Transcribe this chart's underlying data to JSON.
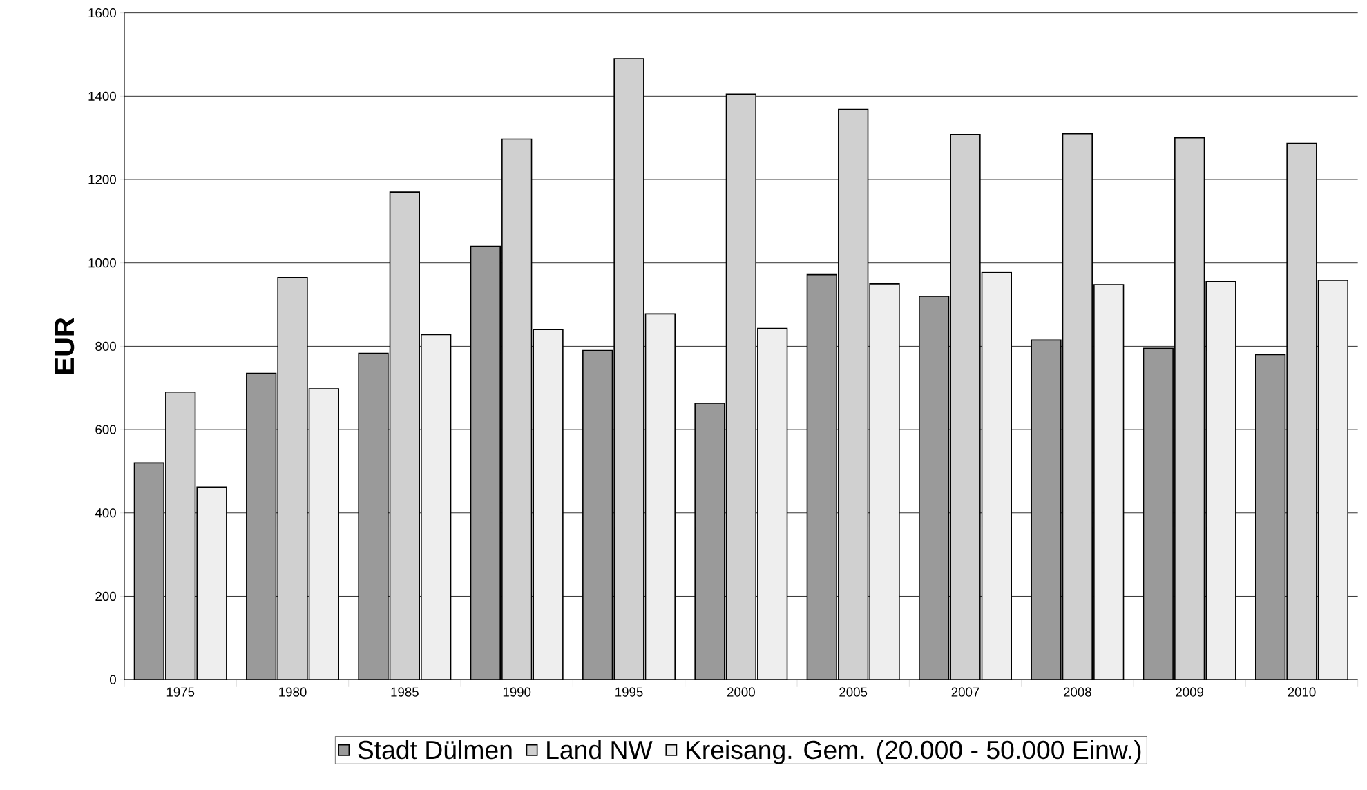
{
  "chart_data": {
    "type": "bar",
    "ylabel": "EUR",
    "categories": [
      "1975",
      "1980",
      "1985",
      "1990",
      "1995",
      "2000",
      "2005",
      "2007",
      "2008",
      "2009",
      "2010"
    ],
    "series": [
      {
        "name": "Stadt Dülmen",
        "color": "#9a9a9a",
        "values": [
          520,
          735,
          783,
          1040,
          790,
          663,
          972,
          920,
          815,
          795,
          780
        ]
      },
      {
        "name": "Land NW",
        "color": "#d0d0d0",
        "values": [
          690,
          965,
          1170,
          1297,
          1490,
          1405,
          1368,
          1308,
          1310,
          1300,
          1287
        ]
      },
      {
        "name": "Kreisang. Gem. (20.000 - 50.000 Einw.)",
        "color": "#eeeeee",
        "values": [
          462,
          698,
          828,
          840,
          878,
          843,
          950,
          977,
          948,
          955,
          958
        ]
      }
    ],
    "ylim": [
      0,
      1600
    ],
    "yticks": [
      0,
      200,
      400,
      600,
      800,
      1000,
      1200,
      1400,
      1600
    ],
    "grid": "y",
    "legend": "bottom"
  }
}
